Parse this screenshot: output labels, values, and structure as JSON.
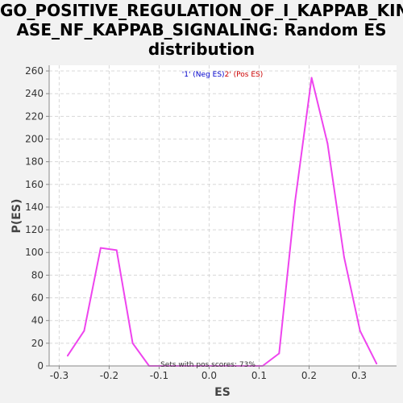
{
  "chart_data": {
    "type": "line",
    "title_lines": [
      "GO_POSITIVE_REGULATION_OF_I_KAPPAB_KIN",
      "ASE_NF_KAPPAB_SIGNALING: Random ES",
      "distribution"
    ],
    "xlabel": "ES",
    "ylabel": "P(ES)",
    "xlim": [
      -0.32,
      0.375
    ],
    "ylim": [
      0,
      265
    ],
    "xticks": [
      -0.3,
      -0.2,
      -0.1,
      0.0,
      0.1,
      0.2,
      0.3
    ],
    "xtick_labels": [
      "-0.3",
      "-0.2",
      "-0.1",
      "0.0",
      "0.1",
      "0.2",
      "0.3"
    ],
    "yticks": [
      0,
      20,
      40,
      60,
      80,
      100,
      120,
      140,
      160,
      180,
      200,
      220,
      240,
      260
    ],
    "ytick_labels": [
      "0",
      "20",
      "40",
      "60",
      "80",
      "100",
      "120",
      "140",
      "160",
      "180",
      "200",
      "220",
      "240",
      "260"
    ],
    "grid": true,
    "legend": {
      "position": "top-center",
      "neg_label": "'1' (Neg ES)",
      "pos_label": "2' (Pos ES)",
      "neg_color": "#0000cc",
      "pos_color": "#cc0000"
    },
    "annotation": "Sets with pos scores: 73%",
    "series": [
      {
        "color": "#ee44ee",
        "x": [
          -0.283,
          -0.25,
          -0.217,
          -0.185,
          -0.153,
          -0.12,
          -0.088,
          -0.055,
          -0.023,
          0.01,
          0.042,
          0.075,
          0.107,
          0.14,
          0.172,
          0.205,
          0.237,
          0.27,
          0.302,
          0.335
        ],
        "y": [
          9,
          31,
          104,
          102,
          20,
          0,
          0,
          0,
          0,
          0,
          0,
          0,
          0,
          11,
          145,
          254,
          196,
          96,
          31,
          2
        ]
      }
    ]
  }
}
